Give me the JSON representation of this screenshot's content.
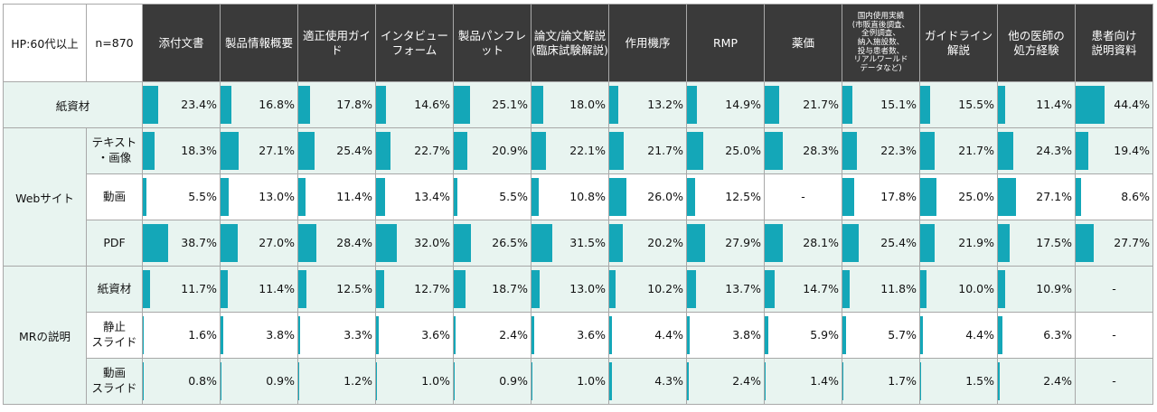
{
  "header": {
    "segment": "HP:60代以上",
    "n": "n=870",
    "columns": [
      "添付文書",
      "製品情報概要",
      "適正使用ガイド",
      "インタビュー\nフォーム",
      "製品パンフレット",
      "論文/論文解説\n(臨床試験解説)",
      "作用機序",
      "RMP",
      "薬価",
      "国内使用実績\n(市販直後調査、\n全例調査、\n納入施設数、\n投与患者数、\nリアルワールド\nデータなど)",
      "ガイドライン解説",
      "他の医師の\n処方経験",
      "患者向け\n説明資料"
    ]
  },
  "bar_color": "#14a7b8",
  "band_color": "#e8f4f0",
  "header_bg": "#3a3a3a",
  "groups": [
    {
      "label": "紙資材",
      "rows": [
        {
          "label": "",
          "values": [
            23.4,
            16.8,
            17.8,
            14.6,
            25.1,
            18.0,
            13.2,
            14.9,
            21.7,
            15.1,
            15.5,
            11.4,
            44.4
          ],
          "display": [
            "23.4%",
            "16.8%",
            "17.8%",
            "14.6%",
            "25.1%",
            "18.0%",
            "13.2%",
            "14.9%",
            "21.7%",
            "15.1%",
            "15.5%",
            "11.4%",
            "44.4%"
          ]
        }
      ]
    },
    {
      "label": "Webサイト",
      "rows": [
        {
          "label": "テキスト\n・画像",
          "values": [
            18.3,
            27.1,
            25.4,
            22.7,
            20.9,
            22.1,
            21.7,
            25.0,
            28.3,
            22.3,
            21.7,
            24.3,
            19.4
          ],
          "display": [
            "18.3%",
            "27.1%",
            "25.4%",
            "22.7%",
            "20.9%",
            "22.1%",
            "21.7%",
            "25.0%",
            "28.3%",
            "22.3%",
            "21.7%",
            "24.3%",
            "19.4%"
          ]
        },
        {
          "label": "動画",
          "values": [
            5.5,
            13.0,
            11.4,
            13.4,
            5.5,
            10.8,
            26.0,
            12.5,
            null,
            17.8,
            25.0,
            27.1,
            8.6
          ],
          "display": [
            "5.5%",
            "13.0%",
            "11.4%",
            "13.4%",
            "5.5%",
            "10.8%",
            "26.0%",
            "12.5%",
            "-",
            "17.8%",
            "25.0%",
            "27.1%",
            "8.6%"
          ]
        },
        {
          "label": "PDF",
          "values": [
            38.7,
            27.0,
            28.4,
            32.0,
            26.5,
            31.5,
            20.2,
            27.9,
            28.1,
            25.4,
            21.9,
            17.5,
            27.7
          ],
          "display": [
            "38.7%",
            "27.0%",
            "28.4%",
            "32.0%",
            "26.5%",
            "31.5%",
            "20.2%",
            "27.9%",
            "28.1%",
            "25.4%",
            "21.9%",
            "17.5%",
            "27.7%"
          ]
        }
      ]
    },
    {
      "label": "MRの説明",
      "rows": [
        {
          "label": "紙資材",
          "values": [
            11.7,
            11.4,
            12.5,
            12.7,
            18.7,
            13.0,
            10.2,
            13.7,
            14.7,
            11.8,
            10.0,
            10.9,
            null
          ],
          "display": [
            "11.7%",
            "11.4%",
            "12.5%",
            "12.7%",
            "18.7%",
            "13.0%",
            "10.2%",
            "13.7%",
            "14.7%",
            "11.8%",
            "10.0%",
            "10.9%",
            "-"
          ]
        },
        {
          "label": "静止\nスライド",
          "values": [
            1.6,
            3.8,
            3.3,
            3.6,
            2.4,
            3.6,
            4.4,
            3.8,
            5.9,
            5.7,
            4.4,
            6.3,
            null
          ],
          "display": [
            "1.6%",
            "3.8%",
            "3.3%",
            "3.6%",
            "2.4%",
            "3.6%",
            "4.4%",
            "3.8%",
            "5.9%",
            "5.7%",
            "4.4%",
            "6.3%",
            "-"
          ]
        },
        {
          "label": "動画\nスライド",
          "values": [
            0.8,
            0.9,
            1.2,
            1.0,
            0.9,
            1.0,
            4.3,
            2.4,
            1.4,
            1.7,
            1.5,
            2.4,
            null
          ],
          "display": [
            "0.8%",
            "0.9%",
            "1.2%",
            "1.0%",
            "0.9%",
            "1.0%",
            "4.3%",
            "2.4%",
            "1.4%",
            "1.7%",
            "1.5%",
            "2.4%",
            "-"
          ]
        }
      ]
    }
  ]
}
